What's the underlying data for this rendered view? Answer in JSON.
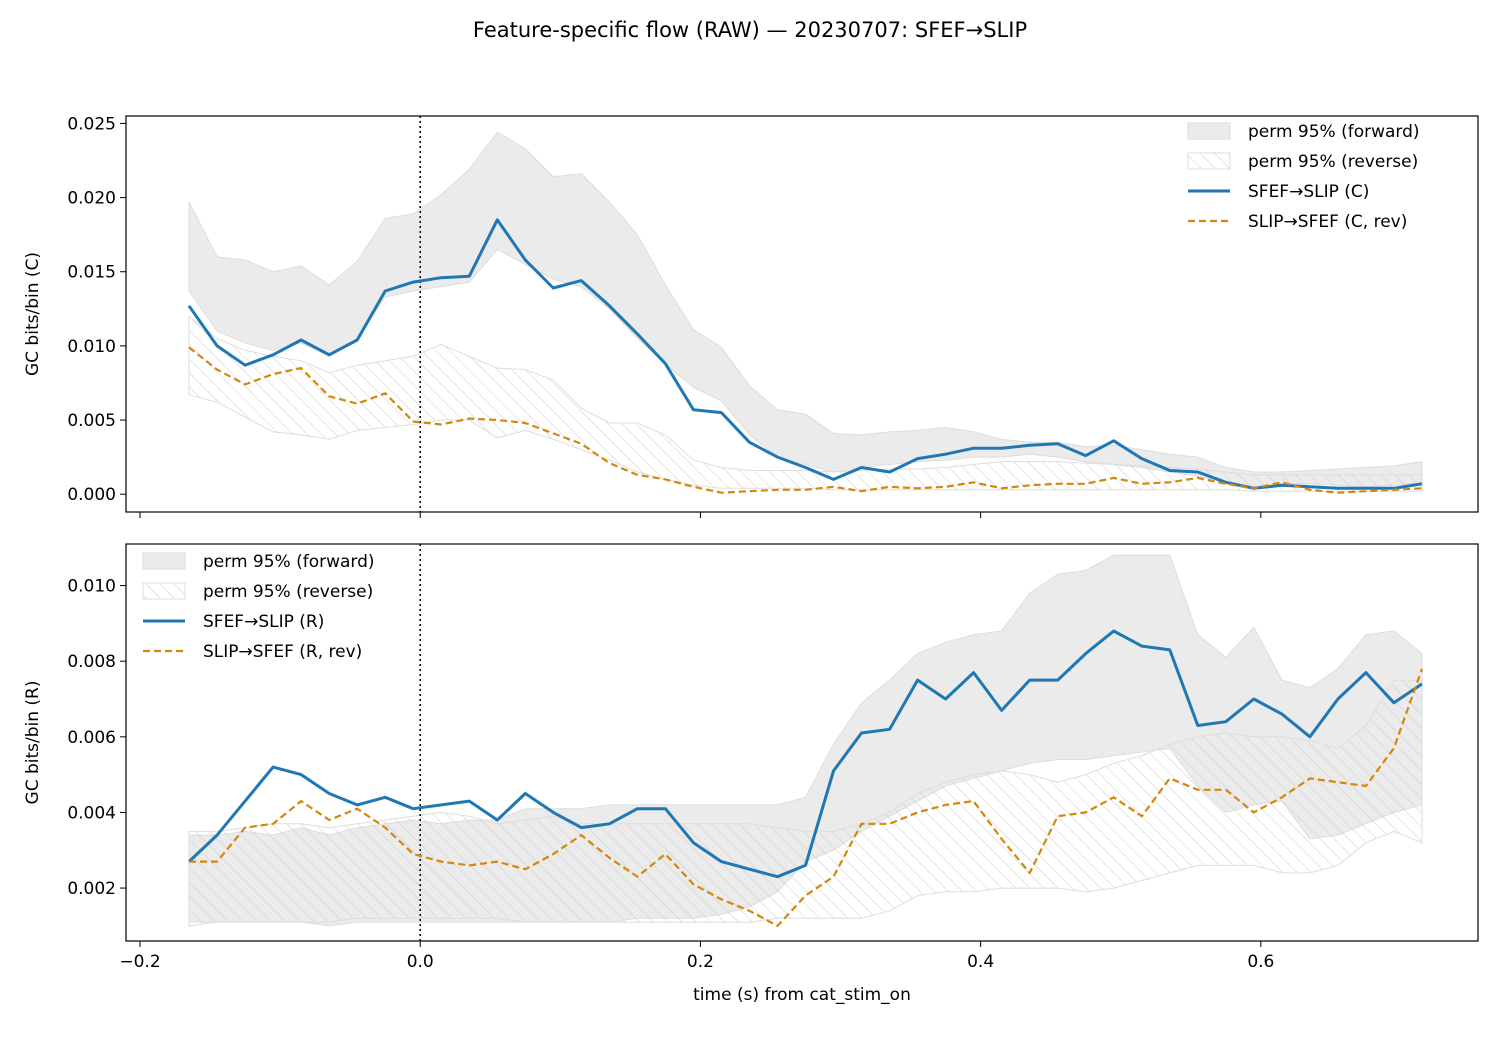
{
  "suptitle": "Feature-specific flow (RAW) — 20230707: SFEF→SLIP",
  "xlabel": "time (s) from cat_stim_on",
  "colors": {
    "forward_line": "#1f77b4",
    "reverse_line": "#d4870c",
    "forward_band": "#ebebeb",
    "reverse_hatch": "#cccccc",
    "vline": "#000000"
  },
  "chart_data": [
    {
      "type": "line",
      "panel": "top",
      "ylabel": "GC bits/bin (C)",
      "xlim": [
        -0.21,
        0.755
      ],
      "ylim": [
        -0.0012,
        0.0255
      ],
      "xticks": [
        -0.2,
        0.0,
        0.2,
        0.4,
        0.6
      ],
      "xtick_labels": [
        "",
        "",
        "",
        "",
        ""
      ],
      "yticks": [
        0.0,
        0.005,
        0.01,
        0.015,
        0.02,
        0.025
      ],
      "ytick_labels": [
        "0.000",
        "0.005",
        "0.010",
        "0.015",
        "0.020",
        "0.025"
      ],
      "vline_x": 0.0,
      "legend": "top-right",
      "x": [
        -0.165,
        -0.145,
        -0.125,
        -0.105,
        -0.085,
        -0.065,
        -0.045,
        -0.025,
        -0.005,
        0.015,
        0.035,
        0.055,
        0.075,
        0.095,
        0.115,
        0.135,
        0.155,
        0.175,
        0.195,
        0.215,
        0.235,
        0.255,
        0.275,
        0.295,
        0.315,
        0.335,
        0.355,
        0.375,
        0.395,
        0.415,
        0.435,
        0.455,
        0.475,
        0.495,
        0.515,
        0.535,
        0.555,
        0.575,
        0.595,
        0.615,
        0.635,
        0.655,
        0.675,
        0.695,
        0.715
      ],
      "bands": [
        {
          "name": "perm 95% (forward)",
          "style": "fill",
          "lower": [
            0.0137,
            0.011,
            0.0102,
            0.0097,
            0.0102,
            0.0093,
            0.0105,
            0.0133,
            0.0137,
            0.014,
            0.0143,
            0.0165,
            0.0155,
            0.0145,
            0.014,
            0.0125,
            0.0105,
            0.0088,
            0.0072,
            0.0063,
            0.004,
            0.0025,
            0.002,
            0.0015,
            0.0018,
            0.002,
            0.0022,
            0.0023,
            0.0025,
            0.0025,
            0.0027,
            0.0025,
            0.0022,
            0.002,
            0.0018,
            0.0015,
            0.0012,
            0.0008,
            0.0005,
            0.0007,
            0.0007,
            0.0006,
            0.0005,
            0.0006,
            0.0008
          ],
          "upper": [
            0.0197,
            0.016,
            0.0158,
            0.015,
            0.0154,
            0.0141,
            0.0157,
            0.0186,
            0.0189,
            0.0202,
            0.0219,
            0.0244,
            0.0233,
            0.0214,
            0.0216,
            0.0197,
            0.0175,
            0.0141,
            0.0111,
            0.0099,
            0.0073,
            0.0057,
            0.0054,
            0.0041,
            0.004,
            0.0042,
            0.0043,
            0.0045,
            0.0042,
            0.0037,
            0.0035,
            0.0035,
            0.0032,
            0.0033,
            0.003,
            0.0027,
            0.0025,
            0.0018,
            0.0015,
            0.0015,
            0.0016,
            0.0017,
            0.0018,
            0.0019,
            0.0022
          ]
        },
        {
          "name": "perm 95% (reverse)",
          "style": "hatch",
          "lower": [
            0.0067,
            0.0062,
            0.0052,
            0.0042,
            0.004,
            0.0037,
            0.0043,
            0.0045,
            0.0047,
            0.005,
            0.005,
            0.0038,
            0.0043,
            0.0037,
            0.003,
            0.0023,
            0.0015,
            0.001,
            0.0006,
            0.0004,
            0.0004,
            0.0004,
            0.0004,
            0.0003,
            0.0003,
            0.0003,
            0.0003,
            0.0003,
            0.0003,
            0.0003,
            0.0003,
            0.0003,
            0.0003,
            0.0003,
            0.0003,
            0.0003,
            0.0003,
            0.0003,
            0.0002,
            0.0002,
            0.0002,
            0.0002,
            0.0002,
            0.0002,
            0.0002
          ],
          "upper": [
            0.012,
            0.0105,
            0.0097,
            0.0093,
            0.009,
            0.0082,
            0.0087,
            0.009,
            0.0093,
            0.0101,
            0.0093,
            0.0085,
            0.0084,
            0.0077,
            0.0058,
            0.0048,
            0.0048,
            0.004,
            0.0023,
            0.0018,
            0.0016,
            0.0016,
            0.0016,
            0.0015,
            0.0016,
            0.0017,
            0.0017,
            0.0018,
            0.002,
            0.0022,
            0.0022,
            0.0022,
            0.0021,
            0.002,
            0.0019,
            0.0018,
            0.0017,
            0.0015,
            0.0013,
            0.0013,
            0.0013,
            0.0013,
            0.0013,
            0.0013,
            0.0013
          ]
        }
      ],
      "series": [
        {
          "name": "SFEF→SLIP (C)",
          "style": "solid",
          "values": [
            0.0127,
            0.01,
            0.0087,
            0.0094,
            0.0104,
            0.0094,
            0.0104,
            0.0137,
            0.0143,
            0.0146,
            0.0147,
            0.0185,
            0.0158,
            0.0139,
            0.0144,
            0.0127,
            0.0108,
            0.0088,
            0.0057,
            0.0055,
            0.0035,
            0.0025,
            0.0018,
            0.001,
            0.0018,
            0.0015,
            0.0024,
            0.0027,
            0.0031,
            0.0031,
            0.0033,
            0.0034,
            0.0026,
            0.0036,
            0.0024,
            0.0016,
            0.0015,
            0.0008,
            0.0004,
            0.0006,
            0.0005,
            0.0004,
            0.0004,
            0.0004,
            0.0007
          ]
        },
        {
          "name": "SLIP→SFEF (C, rev)",
          "style": "dashed",
          "values": [
            0.0099,
            0.0084,
            0.0074,
            0.0081,
            0.0085,
            0.0066,
            0.0061,
            0.0068,
            0.0049,
            0.0047,
            0.0051,
            0.005,
            0.0048,
            0.0041,
            0.0034,
            0.0021,
            0.0013,
            0.001,
            0.0005,
            0.0001,
            0.0002,
            0.0003,
            0.0003,
            0.0005,
            0.0002,
            0.0005,
            0.0004,
            0.0005,
            0.0008,
            0.0004,
            0.0006,
            0.0007,
            0.0007,
            0.0011,
            0.0007,
            0.0008,
            0.0011,
            0.0007,
            0.0004,
            0.0008,
            0.0003,
            0.0001,
            0.0002,
            0.0003,
            0.0004
          ]
        }
      ]
    },
    {
      "type": "line",
      "panel": "bottom",
      "ylabel": "GC bits/bin (R)",
      "xlim": [
        -0.21,
        0.755
      ],
      "ylim": [
        0.0006,
        0.0111
      ],
      "xticks": [
        -0.2,
        0.0,
        0.2,
        0.4,
        0.6
      ],
      "xtick_labels": [
        "−0.2",
        "0.0",
        "0.2",
        "0.4",
        "0.6"
      ],
      "yticks": [
        0.002,
        0.004,
        0.006,
        0.008,
        0.01
      ],
      "ytick_labels": [
        "0.002",
        "0.004",
        "0.006",
        "0.008",
        "0.010"
      ],
      "vline_x": 0.0,
      "legend": "top-left",
      "x": [
        -0.165,
        -0.145,
        -0.125,
        -0.105,
        -0.085,
        -0.065,
        -0.045,
        -0.025,
        -0.005,
        0.015,
        0.035,
        0.055,
        0.075,
        0.095,
        0.115,
        0.135,
        0.155,
        0.175,
        0.195,
        0.215,
        0.235,
        0.255,
        0.275,
        0.295,
        0.315,
        0.335,
        0.355,
        0.375,
        0.395,
        0.415,
        0.435,
        0.455,
        0.475,
        0.495,
        0.515,
        0.535,
        0.555,
        0.575,
        0.595,
        0.615,
        0.635,
        0.655,
        0.675,
        0.695,
        0.715
      ],
      "bands": [
        {
          "name": "perm 95% (forward)",
          "style": "fill",
          "lower": [
            0.0011,
            0.0011,
            0.0011,
            0.0011,
            0.0011,
            0.001,
            0.0011,
            0.0011,
            0.0011,
            0.0011,
            0.0011,
            0.0011,
            0.0011,
            0.0011,
            0.0011,
            0.0011,
            0.0012,
            0.0012,
            0.0012,
            0.0013,
            0.0015,
            0.0019,
            0.0027,
            0.003,
            0.0035,
            0.0039,
            0.0043,
            0.0047,
            0.0049,
            0.0051,
            0.0053,
            0.0054,
            0.0054,
            0.0055,
            0.0056,
            0.0057,
            0.0047,
            0.004,
            0.0042,
            0.0043,
            0.0033,
            0.0034,
            0.0037,
            0.004,
            0.0042
          ],
          "upper": [
            0.0034,
            0.0034,
            0.0035,
            0.0034,
            0.0036,
            0.0034,
            0.0036,
            0.0037,
            0.0038,
            0.0037,
            0.0038,
            0.0038,
            0.0041,
            0.0041,
            0.0041,
            0.0042,
            0.0042,
            0.0042,
            0.0042,
            0.0042,
            0.0042,
            0.0042,
            0.0044,
            0.0058,
            0.0069,
            0.0075,
            0.0082,
            0.0085,
            0.0087,
            0.0088,
            0.0098,
            0.0103,
            0.0104,
            0.0108,
            0.0108,
            0.0108,
            0.0087,
            0.0081,
            0.0089,
            0.0075,
            0.0073,
            0.0078,
            0.0087,
            0.0088,
            0.0082
          ]
        },
        {
          "name": "perm 95% (reverse)",
          "style": "hatch",
          "lower": [
            0.001,
            0.0011,
            0.0011,
            0.0011,
            0.0011,
            0.0011,
            0.0012,
            0.0012,
            0.0012,
            0.0012,
            0.0012,
            0.0012,
            0.0011,
            0.0011,
            0.0011,
            0.0011,
            0.0011,
            0.0011,
            0.0011,
            0.0011,
            0.0011,
            0.0012,
            0.0012,
            0.0012,
            0.0012,
            0.0014,
            0.0018,
            0.0019,
            0.0019,
            0.002,
            0.002,
            0.002,
            0.0019,
            0.002,
            0.0022,
            0.0024,
            0.0026,
            0.0026,
            0.0026,
            0.0024,
            0.0024,
            0.0026,
            0.0032,
            0.0035,
            0.0032
          ],
          "upper": [
            0.0035,
            0.0035,
            0.0036,
            0.0037,
            0.0037,
            0.0036,
            0.0037,
            0.0038,
            0.0039,
            0.004,
            0.0039,
            0.0037,
            0.0038,
            0.0039,
            0.0037,
            0.0037,
            0.0037,
            0.0037,
            0.0037,
            0.0037,
            0.0037,
            0.0036,
            0.0035,
            0.0035,
            0.0037,
            0.004,
            0.0045,
            0.0048,
            0.005,
            0.0051,
            0.005,
            0.0048,
            0.005,
            0.0053,
            0.0055,
            0.0058,
            0.006,
            0.0061,
            0.006,
            0.006,
            0.0059,
            0.0057,
            0.0063,
            0.0075,
            0.0075
          ]
        }
      ],
      "series": [
        {
          "name": "SFEF→SLIP (R)",
          "style": "solid",
          "values": [
            0.0027,
            0.0034,
            0.0043,
            0.0052,
            0.005,
            0.0045,
            0.0042,
            0.0044,
            0.0041,
            0.0042,
            0.0043,
            0.0038,
            0.0045,
            0.004,
            0.0036,
            0.0037,
            0.0041,
            0.0041,
            0.0032,
            0.0027,
            0.0025,
            0.0023,
            0.0026,
            0.0051,
            0.0061,
            0.0062,
            0.0075,
            0.007,
            0.0077,
            0.0067,
            0.0075,
            0.0075,
            0.0082,
            0.0088,
            0.0084,
            0.0083,
            0.0063,
            0.0064,
            0.007,
            0.0066,
            0.006,
            0.007,
            0.0077,
            0.0069,
            0.0074
          ]
        },
        {
          "name": "SLIP→SFEF (R, rev)",
          "style": "dashed",
          "values": [
            0.0027,
            0.0027,
            0.0036,
            0.0037,
            0.0043,
            0.0038,
            0.0041,
            0.0036,
            0.0029,
            0.0027,
            0.0026,
            0.0027,
            0.0025,
            0.0029,
            0.0034,
            0.0028,
            0.0023,
            0.0029,
            0.0021,
            0.0017,
            0.0014,
            0.001,
            0.0018,
            0.0023,
            0.0037,
            0.0037,
            0.004,
            0.0042,
            0.0043,
            0.0033,
            0.0024,
            0.0039,
            0.004,
            0.0044,
            0.0039,
            0.0049,
            0.0046,
            0.0046,
            0.004,
            0.0044,
            0.0049,
            0.0048,
            0.0047,
            0.0057,
            0.0078
          ]
        }
      ]
    }
  ]
}
